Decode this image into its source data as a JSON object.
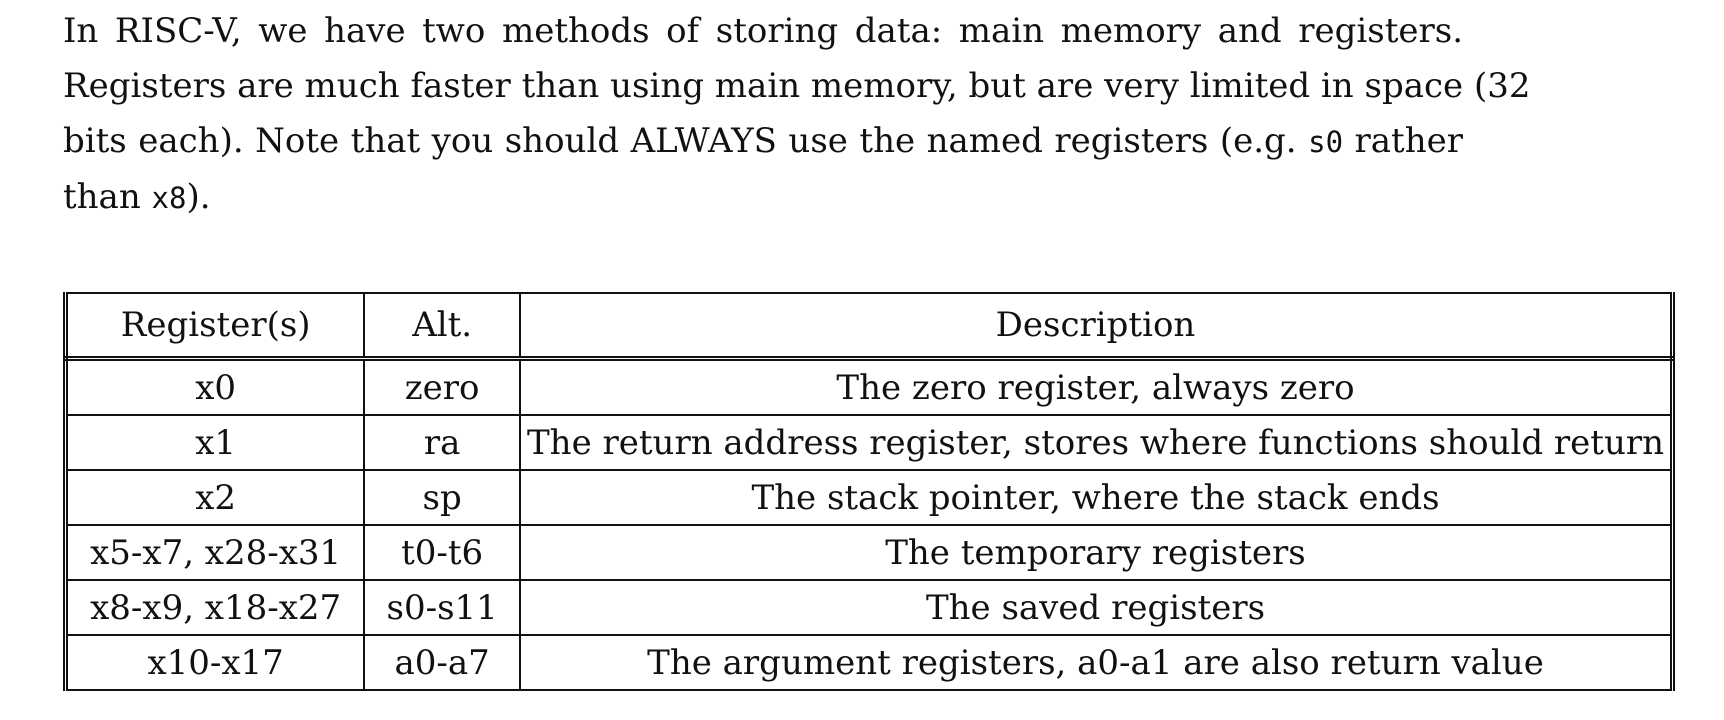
{
  "paragraph": {
    "line1": "In RISC-V, we have two methods of storing data:  main memory and registers.",
    "line2": "Registers are much faster than using main memory, but are very limited in space (32",
    "line3_pre": "bits each). Note that you should ALWAYS use the named registers (e.g. ",
    "line3_code": "s0",
    "line3_post": " rather",
    "line4_pre": "than ",
    "line4_code": "x8",
    "line4_post": ")."
  },
  "table": {
    "headers": [
      "Register(s)",
      "Alt.",
      "Description"
    ],
    "rows": [
      {
        "registers": "x0",
        "alt": "zero",
        "description": "The zero register, always zero"
      },
      {
        "registers": "x1",
        "alt": "ra",
        "description": "The return address register, stores where functions should return"
      },
      {
        "registers": "x2",
        "alt": "sp",
        "description": "The stack pointer, where the stack ends"
      },
      {
        "registers": "x5-x7, x28-x31",
        "alt": "t0-t6",
        "description": "The temporary registers"
      },
      {
        "registers": "x8-x9, x18-x27",
        "alt": "s0-s11",
        "description": "The saved registers"
      },
      {
        "registers": "x10-x17",
        "alt": "a0-a7",
        "description": "The argument registers, a0-a1 are also return value"
      }
    ]
  }
}
